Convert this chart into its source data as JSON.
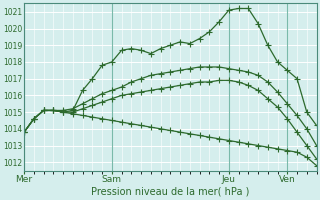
{
  "xlabel": "Pression niveau de la mer( hPa )",
  "bg_color": "#d5eeed",
  "grid_color": "#c8e8e4",
  "line_color": "#2d6a2d",
  "ylim": [
    1011.5,
    1021.5
  ],
  "yticks": [
    1012,
    1013,
    1014,
    1015,
    1016,
    1017,
    1018,
    1019,
    1020,
    1021
  ],
  "xtick_labels": [
    "Mer",
    "Sam",
    "Jeu",
    "Ven"
  ],
  "xtick_positions": [
    0,
    9,
    21,
    27
  ],
  "n_points": 31,
  "line1": [
    1013.8,
    1014.6,
    1015.1,
    1015.1,
    1015.0,
    1015.1,
    1016.3,
    1017.0,
    1017.8,
    1018.0,
    1018.7,
    1018.8,
    1018.7,
    1018.5,
    1018.8,
    1019.0,
    1019.2,
    1019.1,
    1019.4,
    1019.8,
    1020.4,
    1021.1,
    1021.2,
    1021.2,
    1020.3,
    1019.0,
    1018.0,
    1017.5,
    1017.0,
    1015.0,
    1014.2
  ],
  "line2": [
    1013.8,
    1014.6,
    1015.1,
    1015.1,
    1015.1,
    1015.2,
    1015.5,
    1015.8,
    1016.1,
    1016.3,
    1016.5,
    1016.8,
    1017.0,
    1017.2,
    1017.3,
    1017.4,
    1017.5,
    1017.6,
    1017.7,
    1017.7,
    1017.7,
    1017.6,
    1017.5,
    1017.4,
    1017.2,
    1016.8,
    1016.2,
    1015.5,
    1014.8,
    1014.0,
    1013.0
  ],
  "line3": [
    1013.8,
    1014.6,
    1015.1,
    1015.1,
    1015.0,
    1015.0,
    1015.2,
    1015.4,
    1015.6,
    1015.8,
    1016.0,
    1016.1,
    1016.2,
    1016.3,
    1016.4,
    1016.5,
    1016.6,
    1016.7,
    1016.8,
    1016.8,
    1016.9,
    1016.9,
    1016.8,
    1016.6,
    1016.3,
    1015.8,
    1015.3,
    1014.6,
    1013.8,
    1013.0,
    1012.2
  ],
  "line4": [
    1013.8,
    1014.6,
    1015.1,
    1015.1,
    1015.0,
    1014.9,
    1014.8,
    1014.7,
    1014.6,
    1014.5,
    1014.4,
    1014.3,
    1014.2,
    1014.1,
    1014.0,
    1013.9,
    1013.8,
    1013.7,
    1013.6,
    1013.5,
    1013.4,
    1013.3,
    1013.2,
    1013.1,
    1013.0,
    1012.9,
    1012.8,
    1012.7,
    1012.6,
    1012.3,
    1011.8
  ]
}
